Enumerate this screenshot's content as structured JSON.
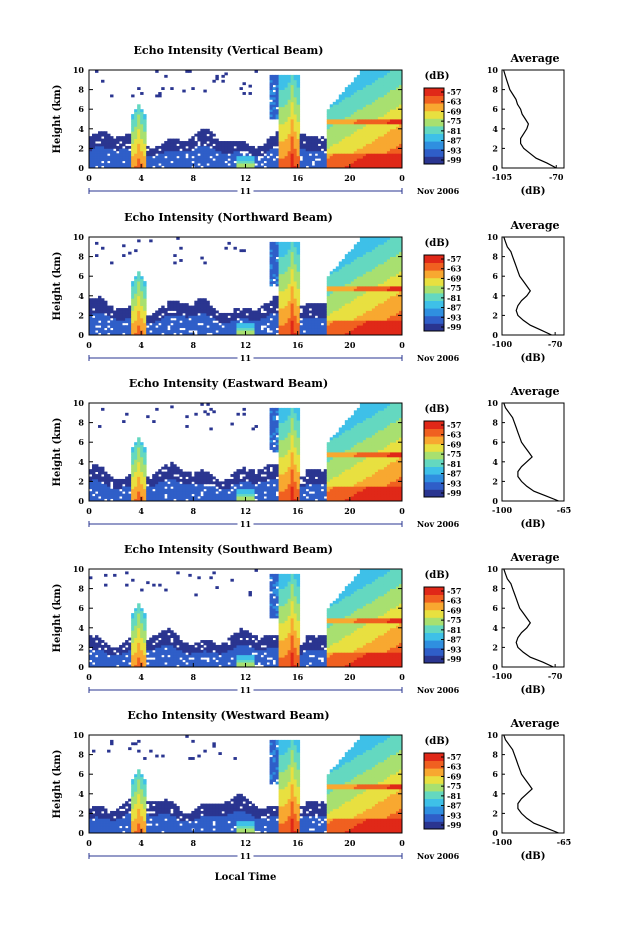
{
  "figure": {
    "xlabel": "Local Time",
    "colorbar_unit": "(dB)",
    "colorbar_ticks": [
      "-57",
      "-63",
      "-69",
      "-75",
      "-81",
      "-87",
      "-93",
      "-99"
    ],
    "date_label": "Nov 2006",
    "day_label": "11",
    "height_label": "Height (km)",
    "avg_title": "Average",
    "avg_xlabel": "(dB)",
    "palette": [
      "#2a3590",
      "#2f5ec8",
      "#2f8fe0",
      "#3ec0e8",
      "#64d8c0",
      "#a8e070",
      "#e8e040",
      "#f8a830",
      "#f06020",
      "#e02818"
    ]
  },
  "chart_data": [
    {
      "type": "heatmap",
      "title": "Echo Intensity (Vertical Beam)",
      "x_ticks": [
        "0",
        "4",
        "8",
        "12",
        "16",
        "20",
        "0"
      ],
      "xlim": [
        0,
        24
      ],
      "y_ticks": [
        "0",
        "2",
        "4",
        "6",
        "8",
        "10"
      ],
      "ylim": [
        0,
        10
      ],
      "colorbar_range": [
        -99,
        -57
      ],
      "average": {
        "xlim": [
          -105,
          -65
        ],
        "x_ticks": [
          "-105",
          "-70"
        ],
        "heights": [
          0,
          0.5,
          1,
          1.5,
          2,
          2.5,
          3,
          3.5,
          4,
          4.5,
          5,
          5.5,
          6,
          6.5,
          7,
          7.5,
          8,
          8.5,
          9,
          9.5,
          10
        ],
        "values": [
          -70,
          -76,
          -83,
          -87,
          -91,
          -93,
          -93,
          -91,
          -89,
          -88,
          -90,
          -92,
          -93,
          -95,
          -96,
          -98,
          -100,
          -101,
          -102,
          -103,
          -104
        ]
      }
    },
    {
      "type": "heatmap",
      "title": "Echo Intensity (Northward Beam)",
      "x_ticks": [
        "0",
        "4",
        "8",
        "12",
        "16",
        "20",
        "0"
      ],
      "xlim": [
        0,
        24
      ],
      "y_ticks": [
        "0",
        "2",
        "4",
        "6",
        "8",
        "10"
      ],
      "ylim": [
        0,
        10
      ],
      "colorbar_range": [
        -99,
        -57
      ],
      "average": {
        "xlim": [
          -100,
          -65
        ],
        "x_ticks": [
          "-100",
          "-70"
        ],
        "heights": [
          0,
          0.5,
          1,
          1.5,
          2,
          2.5,
          3,
          3.5,
          4,
          4.5,
          5,
          5.5,
          6,
          6.5,
          7,
          7.5,
          8,
          8.5,
          9,
          9.5,
          10
        ],
        "values": [
          -72,
          -78,
          -84,
          -88,
          -91,
          -92,
          -91,
          -89,
          -86,
          -84,
          -86,
          -88,
          -90,
          -91,
          -92,
          -93,
          -94,
          -95,
          -97,
          -98,
          -99
        ]
      }
    },
    {
      "type": "heatmap",
      "title": "Echo Intensity (Eastward Beam)",
      "x_ticks": [
        "0",
        "4",
        "8",
        "12",
        "16",
        "20",
        "0"
      ],
      "xlim": [
        0,
        24
      ],
      "y_ticks": [
        "0",
        "2",
        "4",
        "6",
        "8",
        "10"
      ],
      "ylim": [
        0,
        10
      ],
      "colorbar_range": [
        -99,
        -57
      ],
      "average": {
        "xlim": [
          -100,
          -65
        ],
        "x_ticks": [
          "-100",
          "-65"
        ],
        "heights": [
          0,
          0.5,
          1,
          1.5,
          2,
          2.5,
          3,
          3.5,
          4,
          4.5,
          5,
          5.5,
          6,
          6.5,
          7,
          7.5,
          8,
          8.5,
          9,
          9.5,
          10
        ],
        "values": [
          -68,
          -75,
          -82,
          -86,
          -89,
          -91,
          -91,
          -89,
          -86,
          -83,
          -85,
          -87,
          -89,
          -90,
          -91,
          -92,
          -93,
          -94,
          -96,
          -98,
          -99
        ]
      }
    },
    {
      "type": "heatmap",
      "title": "Echo Intensity (Southward Beam)",
      "x_ticks": [
        "0",
        "4",
        "8",
        "12",
        "16",
        "20",
        "0"
      ],
      "xlim": [
        0,
        24
      ],
      "y_ticks": [
        "0",
        "2",
        "4",
        "6",
        "8",
        "10"
      ],
      "ylim": [
        0,
        10
      ],
      "colorbar_range": [
        -99,
        -57
      ],
      "average": {
        "xlim": [
          -100,
          -65
        ],
        "x_ticks": [
          "-100",
          "-70"
        ],
        "heights": [
          0,
          0.5,
          1,
          1.5,
          2,
          2.5,
          3,
          3.5,
          4,
          4.5,
          5,
          5.5,
          6,
          6.5,
          7,
          7.5,
          8,
          8.5,
          9,
          9.5,
          10
        ],
        "values": [
          -71,
          -77,
          -84,
          -88,
          -91,
          -92,
          -91,
          -89,
          -86,
          -84,
          -86,
          -88,
          -90,
          -91,
          -92,
          -93,
          -94,
          -95,
          -97,
          -98,
          -99
        ]
      }
    },
    {
      "type": "heatmap",
      "title": "Echo Intensity (Westward Beam)",
      "x_ticks": [
        "0",
        "4",
        "8",
        "12",
        "16",
        "20",
        "0"
      ],
      "xlim": [
        0,
        24
      ],
      "y_ticks": [
        "0",
        "2",
        "4",
        "6",
        "8",
        "10"
      ],
      "ylim": [
        0,
        10
      ],
      "colorbar_range": [
        -99,
        -57
      ],
      "average": {
        "xlim": [
          -100,
          -65
        ],
        "x_ticks": [
          "-100",
          "-65"
        ],
        "heights": [
          0,
          0.5,
          1,
          1.5,
          2,
          2.5,
          3,
          3.5,
          4,
          4.5,
          5,
          5.5,
          6,
          6.5,
          7,
          7.5,
          8,
          8.5,
          9,
          9.5,
          10
        ],
        "values": [
          -68,
          -75,
          -82,
          -86,
          -89,
          -91,
          -91,
          -89,
          -86,
          -83,
          -85,
          -87,
          -89,
          -90,
          -91,
          -92,
          -93,
          -94,
          -96,
          -98,
          -99
        ]
      }
    }
  ]
}
